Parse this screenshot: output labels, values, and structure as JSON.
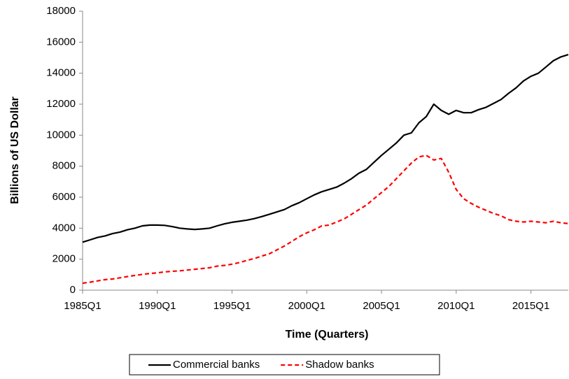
{
  "chart_data": {
    "type": "line",
    "y_label": "Billions of US Dollar",
    "x_label": "Time (Quarters)",
    "categories": [
      "1985Q1",
      null,
      null,
      null,
      null,
      null,
      null,
      null,
      null,
      null,
      "1990Q1",
      null,
      null,
      null,
      null,
      null,
      null,
      null,
      null,
      null,
      "1995Q1",
      null,
      null,
      null,
      null,
      null,
      null,
      null,
      null,
      null,
      "2000Q1",
      null,
      null,
      null,
      null,
      null,
      null,
      null,
      null,
      null,
      "2005Q1",
      null,
      null,
      null,
      null,
      null,
      null,
      null,
      null,
      null,
      "2010Q1",
      null,
      null,
      null,
      null,
      null,
      null,
      null,
      null,
      null,
      "2015Q1",
      null,
      null,
      null,
      null,
      null
    ],
    "series": [
      {
        "name": "Commercial banks",
        "color": "#000000",
        "dashed": false,
        "values": [
          3100,
          3250,
          3400,
          3500,
          3650,
          3750,
          3900,
          4000,
          4150,
          4200,
          4200,
          4180,
          4100,
          4000,
          3950,
          3920,
          3950,
          4000,
          4150,
          4280,
          4380,
          4450,
          4520,
          4620,
          4750,
          4900,
          5050,
          5200,
          5450,
          5650,
          5900,
          6150,
          6350,
          6500,
          6650,
          6900,
          7200,
          7550,
          7800,
          8250,
          8700,
          9100,
          9500,
          10000,
          10150,
          10800,
          11200,
          12000,
          11600,
          11350,
          11600,
          11450,
          11450,
          11650,
          11800,
          12050,
          12300,
          12700,
          13050,
          13500,
          13800,
          14000,
          14400,
          14800,
          15050,
          15200
        ]
      },
      {
        "name": "Shadow banks",
        "color": "#ff0000",
        "dashed": true,
        "values": [
          450,
          520,
          600,
          680,
          720,
          800,
          880,
          950,
          1020,
          1080,
          1120,
          1180,
          1220,
          1250,
          1300,
          1350,
          1400,
          1450,
          1550,
          1600,
          1680,
          1780,
          1920,
          2050,
          2200,
          2350,
          2600,
          2850,
          3150,
          3450,
          3700,
          3900,
          4150,
          4200,
          4400,
          4600,
          4900,
          5200,
          5500,
          5900,
          6300,
          6700,
          7200,
          7700,
          8200,
          8600,
          8700,
          8400,
          8500,
          7600,
          6500,
          5900,
          5600,
          5350,
          5150,
          4950,
          4800,
          4550,
          4450,
          4400,
          4450,
          4400,
          4350,
          4450,
          4350,
          4300
        ]
      }
    ],
    "ylim": [
      0,
      18000
    ],
    "yticks": [
      0,
      2000,
      4000,
      6000,
      8000,
      10000,
      12000,
      14000,
      16000,
      18000
    ],
    "grid": false,
    "legend": "bottom"
  }
}
